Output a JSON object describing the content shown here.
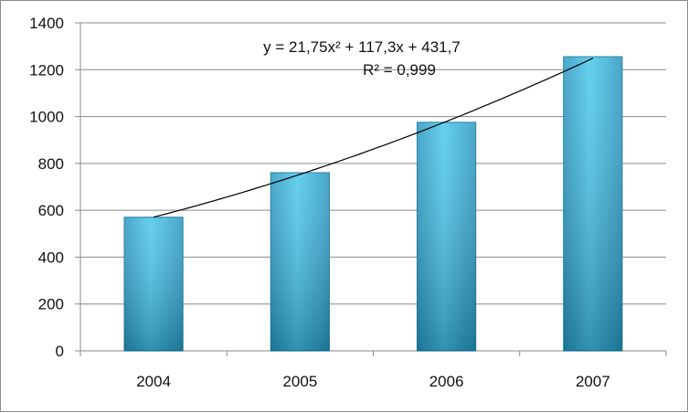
{
  "chart_data": {
    "type": "bar",
    "title": "",
    "xlabel": "",
    "ylabel": "",
    "categories": [
      "2004",
      "2005",
      "2006",
      "2007"
    ],
    "values": [
      570,
      760,
      975,
      1255
    ],
    "ylim": [
      0,
      1400
    ],
    "yticks": [
      "0",
      "200",
      "400",
      "600",
      "800",
      "1000",
      "1200",
      "1400"
    ],
    "grid": true,
    "legend": "none",
    "bar_color": "#3cb9de",
    "bar_edge_color": "#1f7fa3",
    "trendline": {
      "type": "polynomial",
      "order": 2,
      "a": 21.75,
      "b": 117.3,
      "c": 431.7,
      "equation_label": "y = 21,75x² + 117,3x + 431,7",
      "r2_label": "R² = 0,999",
      "color": "#000000"
    }
  }
}
